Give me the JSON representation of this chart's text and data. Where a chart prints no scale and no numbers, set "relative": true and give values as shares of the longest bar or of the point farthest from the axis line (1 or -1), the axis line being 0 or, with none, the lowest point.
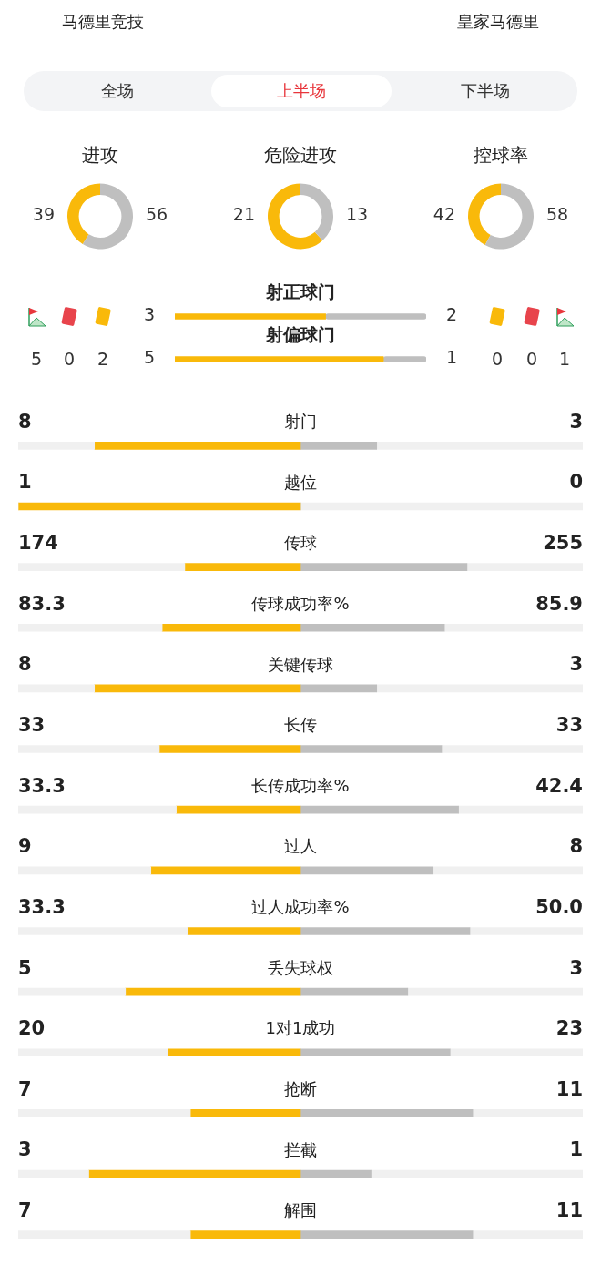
{
  "chart_data": [
    {
      "type": "other",
      "annotations": [
        "马德里竞技",
        "皇家马德里",
        "全场",
        "上半场",
        "下半场"
      ]
    },
    {
      "type": "donut",
      "title": "进攻",
      "categories": [
        null,
        null
      ],
      "values": [
        39,
        56
      ],
      "colors": [
        "#f9b90a",
        "#bfbfbf"
      ],
      "data_labels": true
    },
    {
      "type": "donut",
      "title": "危险进攻",
      "categories": [
        null,
        null
      ],
      "values": [
        21,
        13
      ],
      "colors": [
        "#f9b90a",
        "#bfbfbf"
      ],
      "data_labels": true
    },
    {
      "type": "donut",
      "title": "控球率",
      "categories": [
        null,
        null
      ],
      "values": [
        42,
        58
      ],
      "colors": [
        "#f9b90a",
        "#bfbfbf"
      ],
      "data_labels": true
    },
    {
      "type": "bar",
      "orientation": "horizontal",
      "stacked": true,
      "relative": true,
      "categories": [
        "射正球门",
        "射偏球门"
      ],
      "series": [
        {
          "color": "#f9b90a",
          "values": [
            0.6,
            0.83
          ]
        },
        {
          "color": "#bfbfbf",
          "values": [
            0.4,
            0.17
          ]
        }
      ],
      "annotations": [
        "3",
        "2",
        "5",
        "1",
        "5",
        "0",
        "2",
        "0",
        "0",
        "1"
      ]
    },
    {
      "type": "bar",
      "orientation": "horizontal",
      "stacked": true,
      "relative": true,
      "categories": [
        "射门",
        "越位",
        "传球",
        "传球成功率%",
        "关键传球",
        "长传",
        "长传成功率%",
        "过人",
        "过人成功率%",
        "丢失球权",
        "1对1成功",
        "抢断",
        "拦截",
        "解围"
      ],
      "series": [
        {
          "color": "#f0f0f0",
          "values": [
            0.135,
            0,
            0.295,
            0.255,
            0.135,
            0.25,
            0.28,
            0.235,
            0.3,
            0.19,
            0.265,
            0.305,
            0.125,
            0.305
          ]
        },
        {
          "color": "#f9b90a",
          "values": [
            0.365,
            0.5,
            0.205,
            0.245,
            0.365,
            0.25,
            0.22,
            0.265,
            0.2,
            0.31,
            0.235,
            0.195,
            0.375,
            0.195
          ]
        },
        {
          "color": "#bfbfbf",
          "values": [
            0.135,
            0,
            0.295,
            0.255,
            0.135,
            0.25,
            0.28,
            0.235,
            0.3,
            0.19,
            0.265,
            0.305,
            0.125,
            0.305
          ]
        },
        {
          "color": "#f0f0f0",
          "values": [
            0.365,
            0.5,
            0.205,
            0.245,
            0.365,
            0.25,
            0.22,
            0.265,
            0.2,
            0.31,
            0.235,
            0.195,
            0.375,
            0.195
          ]
        }
      ],
      "annotations": [
        "8",
        "3",
        "1",
        "0",
        "174",
        "255",
        "83.3",
        "85.9",
        "8",
        "3",
        "33",
        "33",
        "33.3",
        "42.4",
        "9",
        "8",
        "33.3",
        "50.0",
        "5",
        "3",
        "20",
        "23",
        "7",
        "11",
        "3",
        "1",
        "7",
        "11"
      ]
    }
  ]
}
